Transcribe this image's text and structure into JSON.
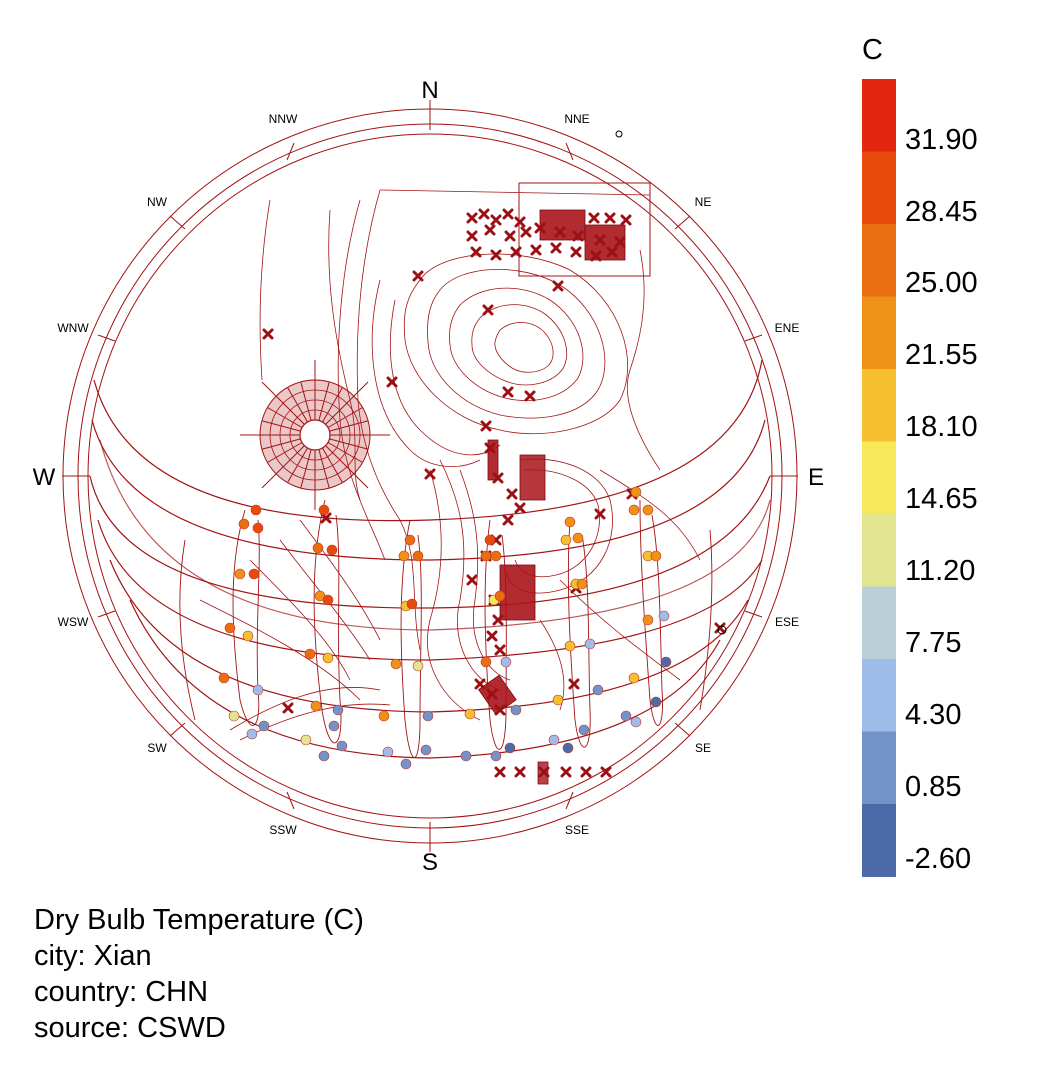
{
  "compass": {
    "cardinal": [
      "N",
      "E",
      "S",
      "W"
    ],
    "intercardinal": [
      "NNE",
      "NE",
      "ENE",
      "ESE",
      "SE",
      "SSE",
      "SSW",
      "SW",
      "WSW",
      "WNW",
      "NW",
      "NNW"
    ]
  },
  "legend": {
    "title": "C",
    "ticks": [
      "31.90",
      "28.45",
      "25.00",
      "21.55",
      "18.10",
      "14.65",
      "11.20",
      "7.75",
      "4.30",
      "0.85",
      "-2.60"
    ],
    "colors": [
      "#e3270f",
      "#e84a0c",
      "#ea6d10",
      "#ef9116",
      "#f5bf30",
      "#f7e85a",
      "#e2e48f",
      "#b9d1d6",
      "#9fbbea",
      "#7392c8",
      "#4c69a8"
    ]
  },
  "info": {
    "line1": "Dry Bulb Temperature (C)",
    "line2": "city: Xian",
    "line3": "country: CHN",
    "line4": "source: CSWD"
  },
  "sun_points": [
    {
      "arc": 1,
      "color": "#e84a0c"
    },
    {
      "arc": 1,
      "color": "#ea6d10"
    },
    {
      "arc": 1,
      "color": "#ea6d10"
    },
    {
      "arc": 1,
      "color": "#ef9116"
    },
    {
      "arc": 1,
      "color": "#ef9116"
    },
    {
      "arc": 1,
      "color": "#f5bf30"
    },
    {
      "arc": 2,
      "color": "#f5bf30"
    },
    {
      "arc": 2,
      "color": "#e84a0c"
    },
    {
      "arc": 2,
      "color": "#ea6d10"
    },
    {
      "arc": 3,
      "color": "#ef9116"
    },
    {
      "arc": 3,
      "color": "#f7e85a"
    },
    {
      "arc": 3,
      "color": "#ea6d10"
    },
    {
      "arc": 4,
      "color": "#9fbbea"
    },
    {
      "arc": 4,
      "color": "#7392c8"
    },
    {
      "arc": 4,
      "color": "#4c69a8"
    },
    {
      "arc": 5,
      "color": "#7392c8"
    },
    {
      "arc": 5,
      "color": "#9fbbea"
    },
    {
      "arc": 5,
      "color": "#e2e48f"
    }
  ]
}
